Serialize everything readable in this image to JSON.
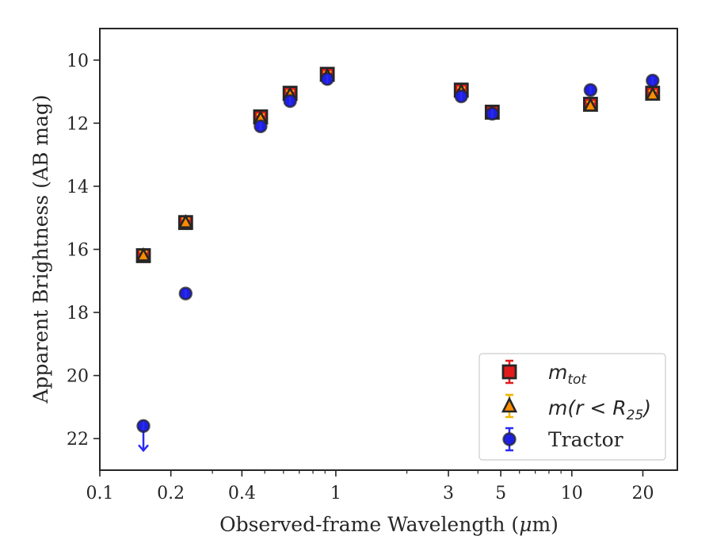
{
  "chart_data": {
    "type": "scatter",
    "xlabel_pre": "Observed-frame Wavelength (",
    "xlabel_mu": "μ",
    "xlabel_post": "m)",
    "ylabel": "Apparent Brightness (AB mag)",
    "xscale": "log",
    "xlim": [
      0.1,
      28
    ],
    "ylim": [
      23,
      9
    ],
    "y_inverted": true,
    "grid": false,
    "legend_position": "lower-right",
    "x_ticks": [
      {
        "value": 0.1,
        "label": "0.1"
      },
      {
        "value": 0.2,
        "label": "0.2"
      },
      {
        "value": 0.4,
        "label": "0.4"
      },
      {
        "value": 1,
        "label": "1"
      },
      {
        "value": 3,
        "label": "3"
      },
      {
        "value": 5,
        "label": "5"
      },
      {
        "value": 10,
        "label": "10"
      },
      {
        "value": 20,
        "label": "20"
      }
    ],
    "x_minor_ticks": [
      0.3,
      0.5,
      0.6,
      0.7,
      0.8,
      0.9,
      2,
      4,
      6,
      7,
      8,
      9
    ],
    "y_ticks": [
      {
        "value": 10,
        "label": "10"
      },
      {
        "value": 12,
        "label": "12"
      },
      {
        "value": 14,
        "label": "14"
      },
      {
        "value": 16,
        "label": "16"
      },
      {
        "value": 18,
        "label": "18"
      },
      {
        "value": 20,
        "label": "20"
      },
      {
        "value": 22,
        "label": "22"
      }
    ],
    "series": [
      {
        "key": "mtot",
        "marker": "square",
        "color": "#e31a1c",
        "errcolor": "#e31a1c",
        "edgecolor": "#262626",
        "x": [
          0.153,
          0.231,
          0.48,
          0.64,
          0.92,
          3.4,
          4.6,
          12.0,
          22.0
        ],
        "y": [
          16.2,
          15.15,
          11.8,
          11.05,
          10.45,
          10.95,
          11.65,
          11.4,
          11.05
        ]
      },
      {
        "key": "mr25",
        "marker": "triangle",
        "color": "#ff8c00",
        "errcolor": "#f0b400",
        "edgecolor": "#262626",
        "x": [
          0.153,
          0.231,
          0.48,
          0.64,
          0.92,
          3.4,
          4.6,
          12.0,
          22.0
        ],
        "y": [
          16.2,
          15.15,
          11.85,
          11.1,
          10.5,
          11.0,
          11.7,
          11.45,
          11.1
        ]
      },
      {
        "key": "tractor",
        "marker": "circle",
        "color": "#1f1fe0",
        "errcolor": "#2b2bf5",
        "edgecolor": "#262626",
        "x": [
          0.153,
          0.231,
          0.48,
          0.64,
          0.92,
          3.4,
          4.6,
          12.0,
          22.0
        ],
        "y": [
          21.6,
          17.4,
          12.1,
          11.3,
          10.6,
          11.15,
          11.7,
          10.95,
          10.65
        ],
        "upper_limits": [
          0
        ]
      }
    ],
    "legend": [
      {
        "key": "mtot",
        "math": "m",
        "sub": "tot",
        "math_tail": "",
        "text": ""
      },
      {
        "key": "mr25",
        "math": "m(r < R",
        "sub": "25",
        "math_tail": ")",
        "text": ""
      },
      {
        "key": "tractor",
        "math": "",
        "sub": "",
        "math_tail": "",
        "text": "Tractor"
      }
    ]
  }
}
